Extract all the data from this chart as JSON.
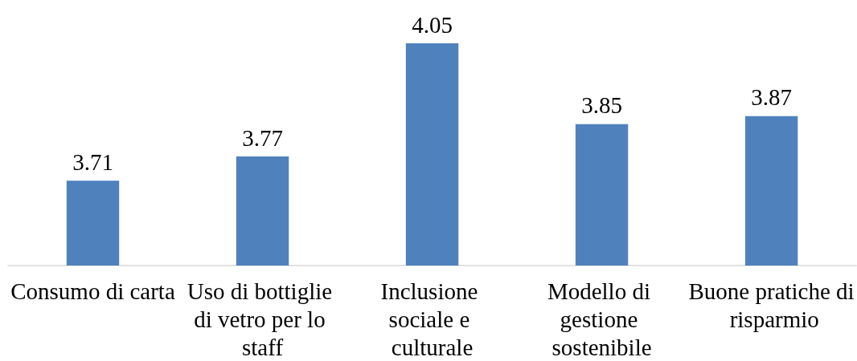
{
  "chart_data": {
    "type": "bar",
    "categories": [
      "Consumo di carta",
      "Uso di bottiglie di vetro per lo staff",
      "Inclusione sociale e culturale",
      "Modello di gestione sostenibile",
      "Buone pratiche di risparmio"
    ],
    "values": [
      3.71,
      3.77,
      4.05,
      3.85,
      3.87
    ],
    "color": "#4f81bd",
    "ylim": [
      3.5,
      4.05
    ],
    "tick_labels": "x",
    "data_labels": true
  }
}
